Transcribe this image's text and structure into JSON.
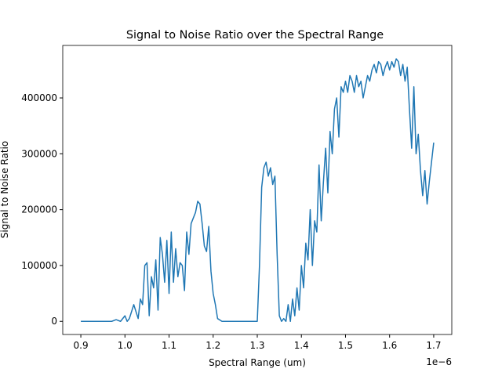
{
  "chart_data": {
    "type": "line",
    "title": "Signal to Noise Ratio over the Spectral Range",
    "x_label": "Spectral Range (um)",
    "y_label": "Signal to Noise Ratio",
    "x_offset_text": "1e−6",
    "x": [
      9e-07,
      9.5e-07,
      9.7e-07,
      9.8e-07,
      9.9e-07,
      1e-06,
      1.005e-06,
      1.01e-06,
      1.02e-06,
      1.03e-06,
      1.035e-06,
      1.04e-06,
      1.045e-06,
      1.05e-06,
      1.055e-06,
      1.06e-06,
      1.065e-06,
      1.07e-06,
      1.075e-06,
      1.08e-06,
      1.085e-06,
      1.09e-06,
      1.095e-06,
      1.1e-06,
      1.105e-06,
      1.11e-06,
      1.115e-06,
      1.12e-06,
      1.125e-06,
      1.13e-06,
      1.135e-06,
      1.14e-06,
      1.145e-06,
      1.15e-06,
      1.155e-06,
      1.16e-06,
      1.165e-06,
      1.17e-06,
      1.175e-06,
      1.18e-06,
      1.185e-06,
      1.19e-06,
      1.195e-06,
      1.2e-06,
      1.205e-06,
      1.21e-06,
      1.22e-06,
      1.25e-06,
      1.3e-06,
      1.305e-06,
      1.31e-06,
      1.315e-06,
      1.32e-06,
      1.325e-06,
      1.33e-06,
      1.335e-06,
      1.34e-06,
      1.345e-06,
      1.35e-06,
      1.355e-06,
      1.36e-06,
      1.365e-06,
      1.37e-06,
      1.375e-06,
      1.38e-06,
      1.385e-06,
      1.39e-06,
      1.395e-06,
      1.4e-06,
      1.405e-06,
      1.41e-06,
      1.415e-06,
      1.42e-06,
      1.425e-06,
      1.43e-06,
      1.435e-06,
      1.44e-06,
      1.445e-06,
      1.45e-06,
      1.455e-06,
      1.46e-06,
      1.465e-06,
      1.47e-06,
      1.475e-06,
      1.48e-06,
      1.485e-06,
      1.49e-06,
      1.495e-06,
      1.5e-06,
      1.505e-06,
      1.51e-06,
      1.515e-06,
      1.52e-06,
      1.525e-06,
      1.53e-06,
      1.535e-06,
      1.54e-06,
      1.545e-06,
      1.55e-06,
      1.555e-06,
      1.56e-06,
      1.565e-06,
      1.57e-06,
      1.575e-06,
      1.58e-06,
      1.585e-06,
      1.59e-06,
      1.595e-06,
      1.6e-06,
      1.605e-06,
      1.61e-06,
      1.615e-06,
      1.62e-06,
      1.625e-06,
      1.63e-06,
      1.635e-06,
      1.64e-06,
      1.645e-06,
      1.65e-06,
      1.655e-06,
      1.66e-06,
      1.665e-06,
      1.67e-06,
      1.675e-06,
      1.68e-06,
      1.685e-06,
      1.69e-06,
      1.7e-06
    ],
    "series": [
      {
        "color": "#1f77b4",
        "values": [
          0,
          0,
          0,
          3000,
          0,
          10000,
          0,
          5000,
          30000,
          5000,
          40000,
          30000,
          100000,
          105000,
          10000,
          80000,
          60000,
          110000,
          20000,
          150000,
          120000,
          70000,
          145000,
          50000,
          160000,
          70000,
          130000,
          80000,
          105000,
          100000,
          55000,
          160000,
          120000,
          175000,
          185000,
          195000,
          215000,
          210000,
          175000,
          135000,
          125000,
          170000,
          90000,
          50000,
          30000,
          5000,
          0,
          0,
          0,
          100000,
          240000,
          275000,
          285000,
          260000,
          275000,
          245000,
          260000,
          120000,
          10000,
          0,
          5000,
          0,
          30000,
          0,
          40000,
          10000,
          60000,
          20000,
          100000,
          60000,
          140000,
          110000,
          200000,
          100000,
          180000,
          160000,
          280000,
          180000,
          250000,
          310000,
          230000,
          340000,
          300000,
          380000,
          400000,
          330000,
          420000,
          410000,
          430000,
          410000,
          440000,
          430000,
          410000,
          440000,
          420000,
          430000,
          400000,
          420000,
          440000,
          430000,
          450000,
          460000,
          445000,
          465000,
          460000,
          440000,
          455000,
          465000,
          450000,
          465000,
          455000,
          470000,
          465000,
          440000,
          460000,
          430000,
          455000,
          380000,
          310000,
          420000,
          300000,
          335000,
          270000,
          225000,
          270000,
          210000,
          250000,
          320000
        ]
      }
    ],
    "xlim": [
      8.59e-07,
      1.741e-06
    ],
    "ylim": [
      -23500,
      494000
    ],
    "xticks": [
      {
        "value": 9e-07,
        "label": "0.9"
      },
      {
        "value": 1e-06,
        "label": "1.0"
      },
      {
        "value": 1.1e-06,
        "label": "1.1"
      },
      {
        "value": 1.2e-06,
        "label": "1.2"
      },
      {
        "value": 1.3e-06,
        "label": "1.3"
      },
      {
        "value": 1.4e-06,
        "label": "1.4"
      },
      {
        "value": 1.5e-06,
        "label": "1.5"
      },
      {
        "value": 1.6e-06,
        "label": "1.6"
      },
      {
        "value": 1.7e-06,
        "label": "1.7"
      }
    ],
    "yticks": [
      0,
      100000,
      200000,
      300000,
      400000
    ],
    "grid": false
  }
}
